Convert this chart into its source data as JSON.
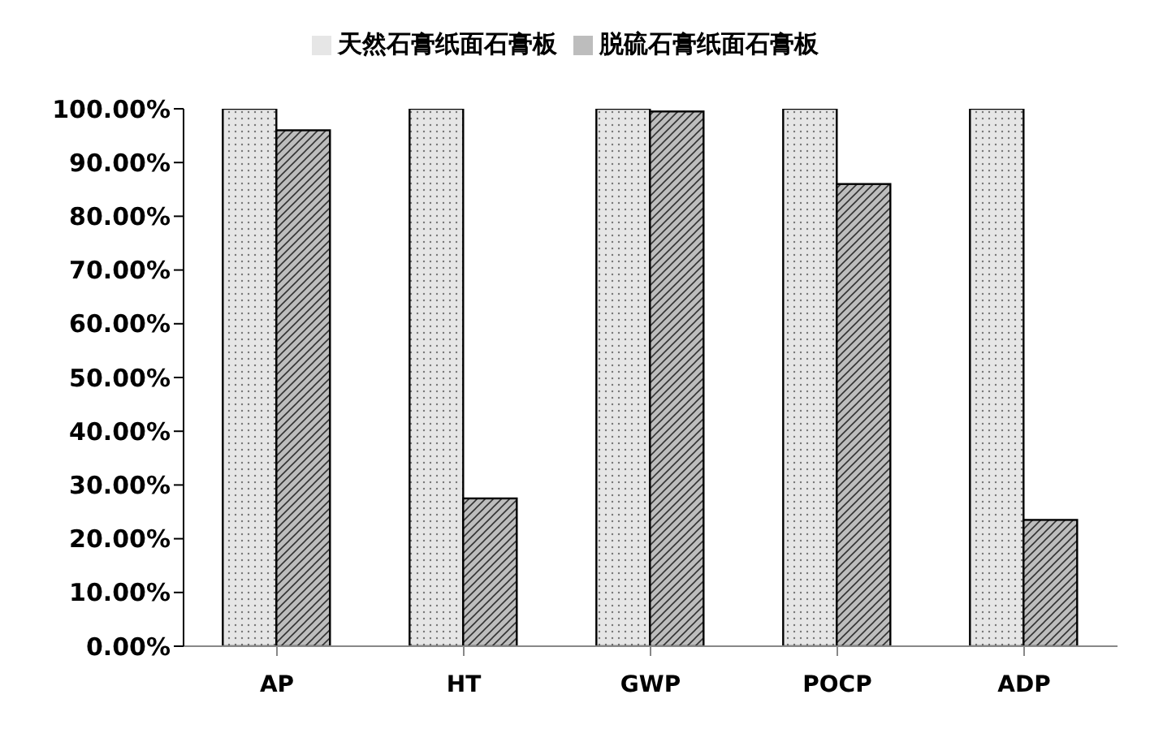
{
  "chart_data": {
    "type": "bar",
    "categories": [
      "AP",
      "HT",
      "GWP",
      "POCP",
      "ADP"
    ],
    "series": [
      {
        "name": "天然石膏纸面石膏板",
        "color": "#e6e6e6",
        "values": [
          100,
          100,
          100,
          100,
          100
        ]
      },
      {
        "name": "脱硫石膏纸面石膏板",
        "color": "#bdbdbd",
        "values": [
          96,
          27.5,
          99.5,
          86,
          23.5
        ]
      }
    ],
    "ylim": [
      0,
      100
    ],
    "yticks": [
      {
        "value": 0,
        "label": "0.00%"
      },
      {
        "value": 10,
        "label": "10.00%"
      },
      {
        "value": 20,
        "label": "20.00%"
      },
      {
        "value": 30,
        "label": "30.00%"
      },
      {
        "value": 40,
        "label": "40.00%"
      },
      {
        "value": 50,
        "label": "50.00%"
      },
      {
        "value": 60,
        "label": "60.00%"
      },
      {
        "value": 70,
        "label": "70.00%"
      },
      {
        "value": 80,
        "label": "80.00%"
      },
      {
        "value": 90,
        "label": "90.00%"
      },
      {
        "value": 100,
        "label": "100.00%"
      }
    ],
    "grid": false,
    "legend": "top"
  }
}
